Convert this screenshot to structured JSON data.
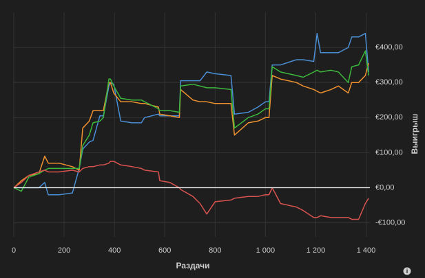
{
  "chart_data": {
    "type": "line",
    "xlabel": "Раздачи",
    "ylabel": "Выигрыш",
    "x": [
      0,
      30,
      60,
      100,
      123,
      137,
      180,
      233,
      260,
      274,
      300,
      315,
      342,
      356,
      378,
      384,
      397,
      425,
      470,
      507,
      520,
      575,
      580,
      620,
      658,
      663,
      712,
      740,
      767,
      800,
      863,
      877,
      932,
      970,
      1000,
      1014,
      1027,
      1060,
      1123,
      1150,
      1192,
      1205,
      1219,
      1260,
      1290,
      1329,
      1343,
      1370,
      1397,
      1410
    ],
    "series": [
      {
        "color": "#4a8fd6",
        "values": [
          0,
          0,
          0,
          0,
          15,
          -20,
          -20,
          -15,
          55,
          110,
          130,
          135,
          205,
          205,
          290,
          300,
          295,
          190,
          185,
          185,
          200,
          210,
          205,
          205,
          205,
          305,
          305,
          305,
          330,
          325,
          320,
          210,
          215,
          230,
          245,
          245,
          350,
          350,
          365,
          365,
          360,
          440,
          385,
          385,
          385,
          400,
          430,
          430,
          440,
          330
        ]
      },
      {
        "color": "#f0922e",
        "values": [
          0,
          20,
          35,
          40,
          90,
          70,
          70,
          60,
          50,
          170,
          190,
          220,
          220,
          220,
          300,
          300,
          270,
          245,
          245,
          240,
          240,
          230,
          210,
          205,
          200,
          280,
          250,
          245,
          245,
          240,
          240,
          150,
          185,
          190,
          200,
          200,
          320,
          310,
          300,
          290,
          280,
          275,
          270,
          280,
          290,
          270,
          300,
          300,
          320,
          355
        ]
      },
      {
        "color": "#3cb83c",
        "values": [
          0,
          -10,
          30,
          40,
          50,
          55,
          55,
          55,
          55,
          120,
          150,
          185,
          190,
          200,
          310,
          310,
          290,
          255,
          250,
          250,
          245,
          225,
          220,
          220,
          215,
          290,
          295,
          290,
          285,
          285,
          280,
          170,
          200,
          210,
          225,
          225,
          345,
          330,
          320,
          315,
          330,
          335,
          330,
          335,
          330,
          300,
          345,
          350,
          390,
          320
        ]
      },
      {
        "color": "#d9534f",
        "values": [
          0,
          15,
          35,
          45,
          50,
          45,
          45,
          50,
          45,
          55,
          60,
          60,
          65,
          65,
          70,
          75,
          75,
          65,
          60,
          55,
          50,
          45,
          20,
          15,
          0,
          -5,
          -25,
          -45,
          -75,
          -40,
          -35,
          -30,
          -25,
          -25,
          -20,
          -20,
          0,
          -45,
          -55,
          -65,
          -85,
          -85,
          -80,
          -85,
          -85,
          -85,
          -90,
          -90,
          -45,
          -30
        ]
      }
    ],
    "xlim": [
      0,
      1415
    ],
    "ylim": [
      -140,
      500
    ],
    "xticks": [
      0,
      200,
      400,
      600,
      800,
      {
        "value": 1000,
        "label": "1 000"
      },
      {
        "value": 1200,
        "label": "1 200"
      },
      {
        "value": 1400,
        "label": "1 400"
      }
    ],
    "yticks": [
      {
        "value": -100,
        "label": "-€100,00"
      },
      {
        "value": 0,
        "label": "€0,00"
      },
      {
        "value": 100,
        "label": "€100,00"
      },
      {
        "value": 200,
        "label": "€200,00"
      },
      {
        "value": 300,
        "label": "€300,00"
      },
      {
        "value": 400,
        "label": "€400,00"
      }
    ],
    "grid": true
  }
}
